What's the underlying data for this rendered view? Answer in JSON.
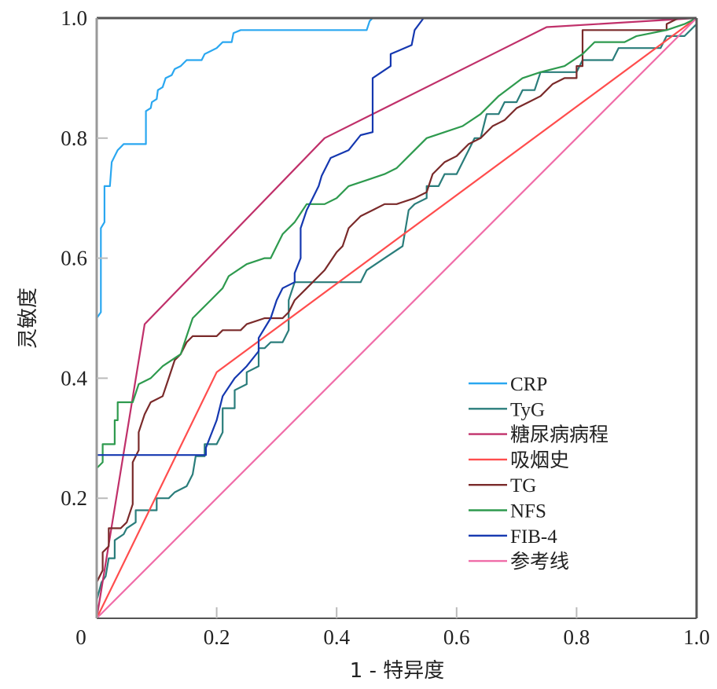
{
  "chart_data": {
    "type": "line",
    "title": "",
    "xlabel": "1 - 特异度",
    "ylabel": "灵敏度",
    "xlim": [
      0,
      1
    ],
    "ylim": [
      0,
      1
    ],
    "grid": false,
    "legend_position": "bottom-right",
    "x_ticks": [
      {
        "value": 0,
        "label": "0"
      },
      {
        "value": 0.2,
        "label": "0.2"
      },
      {
        "value": 0.4,
        "label": "0.4"
      },
      {
        "value": 0.6,
        "label": "0.6"
      },
      {
        "value": 0.8,
        "label": "0.8"
      },
      {
        "value": 1.0,
        "label": "1.0"
      }
    ],
    "y_ticks": [
      {
        "value": 0.2,
        "label": "0.2"
      },
      {
        "value": 0.4,
        "label": "0.4"
      },
      {
        "value": 0.6,
        "label": "0.6"
      },
      {
        "value": 0.8,
        "label": "0.8"
      },
      {
        "value": 1.0,
        "label": "1.0"
      }
    ],
    "series": [
      {
        "name": "CRP",
        "color": "#2aa7f0",
        "points": [
          [
            0,
            0
          ],
          [
            0,
            0.5
          ],
          [
            0.007,
            0.51
          ],
          [
            0.007,
            0.65
          ],
          [
            0.013,
            0.66
          ],
          [
            0.013,
            0.72
          ],
          [
            0.022,
            0.72
          ],
          [
            0.025,
            0.76
          ],
          [
            0.03,
            0.77
          ],
          [
            0.035,
            0.78
          ],
          [
            0.04,
            0.785
          ],
          [
            0.045,
            0.79
          ],
          [
            0.082,
            0.79
          ],
          [
            0.082,
            0.845
          ],
          [
            0.09,
            0.85
          ],
          [
            0.092,
            0.86
          ],
          [
            0.1,
            0.865
          ],
          [
            0.102,
            0.88
          ],
          [
            0.11,
            0.885
          ],
          [
            0.115,
            0.9
          ],
          [
            0.125,
            0.905
          ],
          [
            0.13,
            0.915
          ],
          [
            0.14,
            0.92
          ],
          [
            0.15,
            0.93
          ],
          [
            0.175,
            0.93
          ],
          [
            0.18,
            0.94
          ],
          [
            0.19,
            0.945
          ],
          [
            0.2,
            0.95
          ],
          [
            0.21,
            0.96
          ],
          [
            0.225,
            0.96
          ],
          [
            0.228,
            0.975
          ],
          [
            0.24,
            0.98
          ],
          [
            0.45,
            0.98
          ],
          [
            0.455,
            0.995
          ],
          [
            0.46,
            1
          ],
          [
            1,
            1
          ]
        ]
      },
      {
        "name": "TyG",
        "color": "#2a7d7b",
        "points": [
          [
            0,
            0
          ],
          [
            0,
            0.03
          ],
          [
            0.008,
            0.06
          ],
          [
            0.015,
            0.07
          ],
          [
            0.02,
            0.1
          ],
          [
            0.03,
            0.1
          ],
          [
            0.03,
            0.13
          ],
          [
            0.045,
            0.14
          ],
          [
            0.05,
            0.15
          ],
          [
            0.065,
            0.16
          ],
          [
            0.065,
            0.18
          ],
          [
            0.1,
            0.18
          ],
          [
            0.1,
            0.2
          ],
          [
            0.12,
            0.2
          ],
          [
            0.13,
            0.21
          ],
          [
            0.15,
            0.22
          ],
          [
            0.16,
            0.24
          ],
          [
            0.165,
            0.27
          ],
          [
            0.18,
            0.27
          ],
          [
            0.18,
            0.29
          ],
          [
            0.2,
            0.29
          ],
          [
            0.21,
            0.31
          ],
          [
            0.21,
            0.35
          ],
          [
            0.23,
            0.35
          ],
          [
            0.23,
            0.38
          ],
          [
            0.25,
            0.39
          ],
          [
            0.25,
            0.41
          ],
          [
            0.27,
            0.42
          ],
          [
            0.27,
            0.45
          ],
          [
            0.28,
            0.45
          ],
          [
            0.29,
            0.46
          ],
          [
            0.31,
            0.46
          ],
          [
            0.32,
            0.48
          ],
          [
            0.32,
            0.53
          ],
          [
            0.33,
            0.56
          ],
          [
            0.44,
            0.56
          ],
          [
            0.45,
            0.58
          ],
          [
            0.48,
            0.6
          ],
          [
            0.51,
            0.62
          ],
          [
            0.52,
            0.68
          ],
          [
            0.53,
            0.69
          ],
          [
            0.55,
            0.7
          ],
          [
            0.55,
            0.72
          ],
          [
            0.57,
            0.72
          ],
          [
            0.58,
            0.74
          ],
          [
            0.6,
            0.74
          ],
          [
            0.62,
            0.78
          ],
          [
            0.63,
            0.8
          ],
          [
            0.64,
            0.8
          ],
          [
            0.65,
            0.84
          ],
          [
            0.67,
            0.84
          ],
          [
            0.68,
            0.86
          ],
          [
            0.7,
            0.86
          ],
          [
            0.71,
            0.88
          ],
          [
            0.73,
            0.88
          ],
          [
            0.74,
            0.91
          ],
          [
            0.8,
            0.91
          ],
          [
            0.81,
            0.93
          ],
          [
            0.86,
            0.93
          ],
          [
            0.87,
            0.95
          ],
          [
            0.94,
            0.95
          ],
          [
            0.95,
            0.97
          ],
          [
            0.98,
            0.97
          ],
          [
            1,
            0.99
          ],
          [
            1,
            1
          ]
        ]
      },
      {
        "name": "糖尿病病程",
        "color": "#c0306a",
        "points": [
          [
            0,
            0
          ],
          [
            0.08,
            0.49
          ],
          [
            0.38,
            0.8
          ],
          [
            0.75,
            0.985
          ],
          [
            1,
            1
          ]
        ]
      },
      {
        "name": "吸烟史",
        "color": "#ff4d4d",
        "points": [
          [
            0,
            0
          ],
          [
            0.2,
            0.41
          ],
          [
            1,
            1
          ]
        ]
      },
      {
        "name": "TG",
        "color": "#7a2a2a",
        "points": [
          [
            0,
            0
          ],
          [
            0,
            0.06
          ],
          [
            0.01,
            0.08
          ],
          [
            0.01,
            0.11
          ],
          [
            0.02,
            0.12
          ],
          [
            0.02,
            0.15
          ],
          [
            0.04,
            0.15
          ],
          [
            0.05,
            0.16
          ],
          [
            0.06,
            0.19
          ],
          [
            0.06,
            0.22
          ],
          [
            0.06,
            0.26
          ],
          [
            0.07,
            0.28
          ],
          [
            0.07,
            0.31
          ],
          [
            0.08,
            0.34
          ],
          [
            0.09,
            0.36
          ],
          [
            0.11,
            0.37
          ],
          [
            0.12,
            0.4
          ],
          [
            0.13,
            0.43
          ],
          [
            0.14,
            0.44
          ],
          [
            0.15,
            0.46
          ],
          [
            0.16,
            0.47
          ],
          [
            0.2,
            0.47
          ],
          [
            0.21,
            0.48
          ],
          [
            0.24,
            0.48
          ],
          [
            0.25,
            0.49
          ],
          [
            0.28,
            0.5
          ],
          [
            0.31,
            0.5
          ],
          [
            0.32,
            0.51
          ],
          [
            0.33,
            0.53
          ],
          [
            0.35,
            0.55
          ],
          [
            0.37,
            0.57
          ],
          [
            0.38,
            0.58
          ],
          [
            0.4,
            0.61
          ],
          [
            0.41,
            0.62
          ],
          [
            0.42,
            0.65
          ],
          [
            0.44,
            0.67
          ],
          [
            0.46,
            0.68
          ],
          [
            0.48,
            0.69
          ],
          [
            0.5,
            0.69
          ],
          [
            0.53,
            0.7
          ],
          [
            0.55,
            0.71
          ],
          [
            0.56,
            0.74
          ],
          [
            0.58,
            0.76
          ],
          [
            0.6,
            0.77
          ],
          [
            0.62,
            0.79
          ],
          [
            0.64,
            0.8
          ],
          [
            0.66,
            0.82
          ],
          [
            0.68,
            0.83
          ],
          [
            0.7,
            0.85
          ],
          [
            0.72,
            0.86
          ],
          [
            0.74,
            0.87
          ],
          [
            0.76,
            0.89
          ],
          [
            0.78,
            0.9
          ],
          [
            0.8,
            0.9
          ],
          [
            0.8,
            0.92
          ],
          [
            0.81,
            0.92
          ],
          [
            0.81,
            0.98
          ],
          [
            0.95,
            0.98
          ],
          [
            0.95,
            0.99
          ],
          [
            0.97,
            1
          ],
          [
            1,
            1
          ]
        ]
      },
      {
        "name": "NFS",
        "color": "#2e9a4e",
        "points": [
          [
            0,
            0
          ],
          [
            0,
            0.25
          ],
          [
            0.01,
            0.26
          ],
          [
            0.01,
            0.29
          ],
          [
            0.03,
            0.29
          ],
          [
            0.03,
            0.33
          ],
          [
            0.035,
            0.33
          ],
          [
            0.035,
            0.36
          ],
          [
            0.06,
            0.36
          ],
          [
            0.07,
            0.39
          ],
          [
            0.09,
            0.4
          ],
          [
            0.11,
            0.42
          ],
          [
            0.14,
            0.44
          ],
          [
            0.15,
            0.47
          ],
          [
            0.16,
            0.5
          ],
          [
            0.19,
            0.53
          ],
          [
            0.21,
            0.55
          ],
          [
            0.22,
            0.57
          ],
          [
            0.25,
            0.59
          ],
          [
            0.28,
            0.6
          ],
          [
            0.29,
            0.6
          ],
          [
            0.3,
            0.62
          ],
          [
            0.31,
            0.64
          ],
          [
            0.33,
            0.66
          ],
          [
            0.35,
            0.69
          ],
          [
            0.38,
            0.69
          ],
          [
            0.4,
            0.7
          ],
          [
            0.42,
            0.72
          ],
          [
            0.45,
            0.73
          ],
          [
            0.48,
            0.74
          ],
          [
            0.5,
            0.75
          ],
          [
            0.52,
            0.77
          ],
          [
            0.55,
            0.8
          ],
          [
            0.58,
            0.81
          ],
          [
            0.61,
            0.82
          ],
          [
            0.64,
            0.84
          ],
          [
            0.67,
            0.87
          ],
          [
            0.71,
            0.9
          ],
          [
            0.74,
            0.91
          ],
          [
            0.78,
            0.92
          ],
          [
            0.81,
            0.94
          ],
          [
            0.83,
            0.96
          ],
          [
            0.88,
            0.96
          ],
          [
            0.9,
            0.97
          ],
          [
            0.95,
            0.98
          ],
          [
            0.98,
            0.99
          ],
          [
            1,
            1
          ]
        ]
      },
      {
        "name": "FIB-4",
        "color": "#1538b0",
        "points": [
          [
            0,
            0
          ],
          [
            0,
            0.272
          ],
          [
            0.182,
            0.272
          ],
          [
            0.182,
            0.284
          ],
          [
            0.2,
            0.33
          ],
          [
            0.21,
            0.37
          ],
          [
            0.23,
            0.4
          ],
          [
            0.25,
            0.42
          ],
          [
            0.27,
            0.445
          ],
          [
            0.27,
            0.467
          ],
          [
            0.29,
            0.5
          ],
          [
            0.3,
            0.53
          ],
          [
            0.31,
            0.55
          ],
          [
            0.33,
            0.56
          ],
          [
            0.33,
            0.575
          ],
          [
            0.34,
            0.6
          ],
          [
            0.34,
            0.65
          ],
          [
            0.35,
            0.68
          ],
          [
            0.36,
            0.7
          ],
          [
            0.37,
            0.72
          ],
          [
            0.375,
            0.737
          ],
          [
            0.39,
            0.767
          ],
          [
            0.42,
            0.78
          ],
          [
            0.44,
            0.805
          ],
          [
            0.46,
            0.81
          ],
          [
            0.46,
            0.9
          ],
          [
            0.49,
            0.92
          ],
          [
            0.49,
            0.94
          ],
          [
            0.525,
            0.955
          ],
          [
            0.53,
            0.98
          ],
          [
            0.545,
            1
          ],
          [
            1,
            1
          ]
        ]
      },
      {
        "name": "参考线",
        "color": "#f06ca8",
        "points": [
          [
            0,
            0
          ],
          [
            1,
            1
          ]
        ]
      }
    ]
  }
}
